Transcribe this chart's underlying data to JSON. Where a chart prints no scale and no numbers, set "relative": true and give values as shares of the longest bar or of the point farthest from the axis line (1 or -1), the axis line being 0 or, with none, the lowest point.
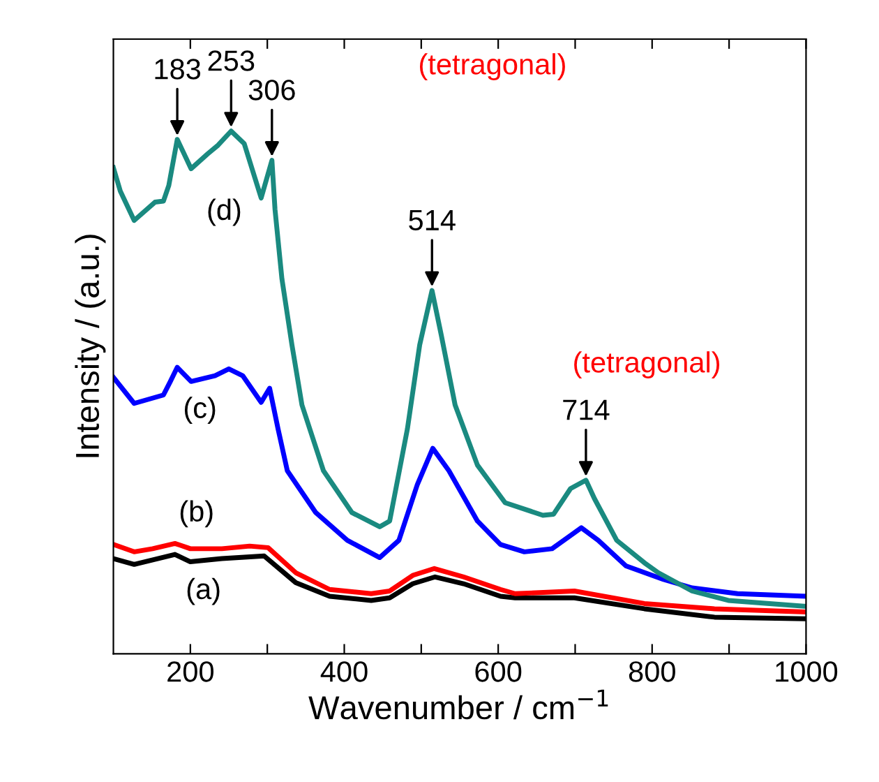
{
  "chart_data": {
    "type": "line",
    "relative": true,
    "xlabel": "Wavenumber / cm$^{−1}$",
    "ylabel": "Intensity / (a.u.)",
    "xlim": [
      100,
      1000
    ],
    "xticks": [
      200,
      {
        "value": 300,
        "label": null
      },
      400,
      {
        "value": 500,
        "label": null
      },
      600,
      {
        "value": 700,
        "label": null
      },
      800,
      {
        "value": 900,
        "label": null
      },
      1000
    ],
    "grid": false,
    "legend": false,
    "marker": "none",
    "line_style": "solid",
    "series": [
      {
        "name": "(a)",
        "color": "#000000",
        "x": [
          100,
          127,
          180,
          200,
          241,
          296,
          337,
          381,
          435,
          459,
          489,
          518,
          555,
          603,
          622,
          699,
          790,
          881,
          998
        ],
        "values": [
          0.182,
          0.171,
          0.19,
          0.176,
          0.182,
          0.187,
          0.136,
          0.11,
          0.102,
          0.107,
          0.134,
          0.147,
          0.134,
          0.11,
          0.107,
          0.107,
          0.086,
          0.07,
          0.067
        ]
      },
      {
        "name": "(b)",
        "color": "#ff0000",
        "x": [
          100,
          127,
          151,
          180,
          200,
          241,
          277,
          301,
          337,
          381,
          435,
          459,
          489,
          517,
          555,
          603,
          622,
          699,
          790,
          881,
          998
        ],
        "values": [
          0.209,
          0.195,
          0.201,
          0.211,
          0.201,
          0.201,
          0.206,
          0.203,
          0.155,
          0.123,
          0.115,
          0.12,
          0.15,
          0.163,
          0.147,
          0.123,
          0.115,
          0.12,
          0.096,
          0.086,
          0.08
        ]
      },
      {
        "name": "(c)",
        "color": "#0000ff",
        "x": [
          100,
          127,
          165,
          174,
          183,
          201,
          232,
          250,
          268,
          292,
          303,
          314,
          326,
          363,
          404,
          446,
          471,
          495,
          515,
          536,
          573,
          603,
          634,
          670,
          708,
          730,
          766,
          815,
          852,
          911,
          998
        ],
        "values": [
          0.529,
          0.479,
          0.495,
          0.521,
          0.548,
          0.521,
          0.532,
          0.545,
          0.532,
          0.481,
          0.508,
          0.43,
          0.35,
          0.27,
          0.217,
          0.184,
          0.217,
          0.324,
          0.393,
          0.35,
          0.254,
          0.209,
          0.195,
          0.201,
          0.241,
          0.217,
          0.168,
          0.142,
          0.126,
          0.115,
          0.11
        ]
      },
      {
        "name": "(d)",
        "color": "#1a8a80",
        "x": [
          100,
          109,
          127,
          154,
          165,
          172,
          183,
          201,
          223,
          236,
          253,
          270,
          292,
          306,
          310,
          319,
          332,
          345,
          373,
          410,
          446,
          459,
          482,
          498,
          514,
          526,
          544,
          573,
          609,
          658,
          672,
          694,
          714,
          725,
          754,
          790,
          808,
          852,
          899,
          998
        ],
        "values": [
          0.93,
          0.885,
          0.829,
          0.864,
          0.866,
          0.896,
          0.984,
          0.928,
          0.957,
          0.973,
          1.0,
          0.976,
          0.872,
          0.944,
          0.85,
          0.717,
          0.591,
          0.476,
          0.35,
          0.27,
          0.243,
          0.254,
          0.43,
          0.591,
          0.695,
          0.61,
          0.476,
          0.361,
          0.289,
          0.265,
          0.267,
          0.316,
          0.332,
          0.297,
          0.217,
          0.174,
          0.155,
          0.12,
          0.102,
          0.091
        ]
      }
    ],
    "annotations": [
      {
        "text": "183",
        "x": 183,
        "y": 0.984
      },
      {
        "text": "253",
        "x": 253,
        "y": 1.0
      },
      {
        "text": "306",
        "x": 306,
        "y": 0.944
      },
      {
        "text": "514",
        "x": 514,
        "y": 0.695
      },
      {
        "text": "714",
        "x": 714,
        "y": 0.332
      },
      "(tetragonal)",
      "(tetragonal)"
    ]
  }
}
